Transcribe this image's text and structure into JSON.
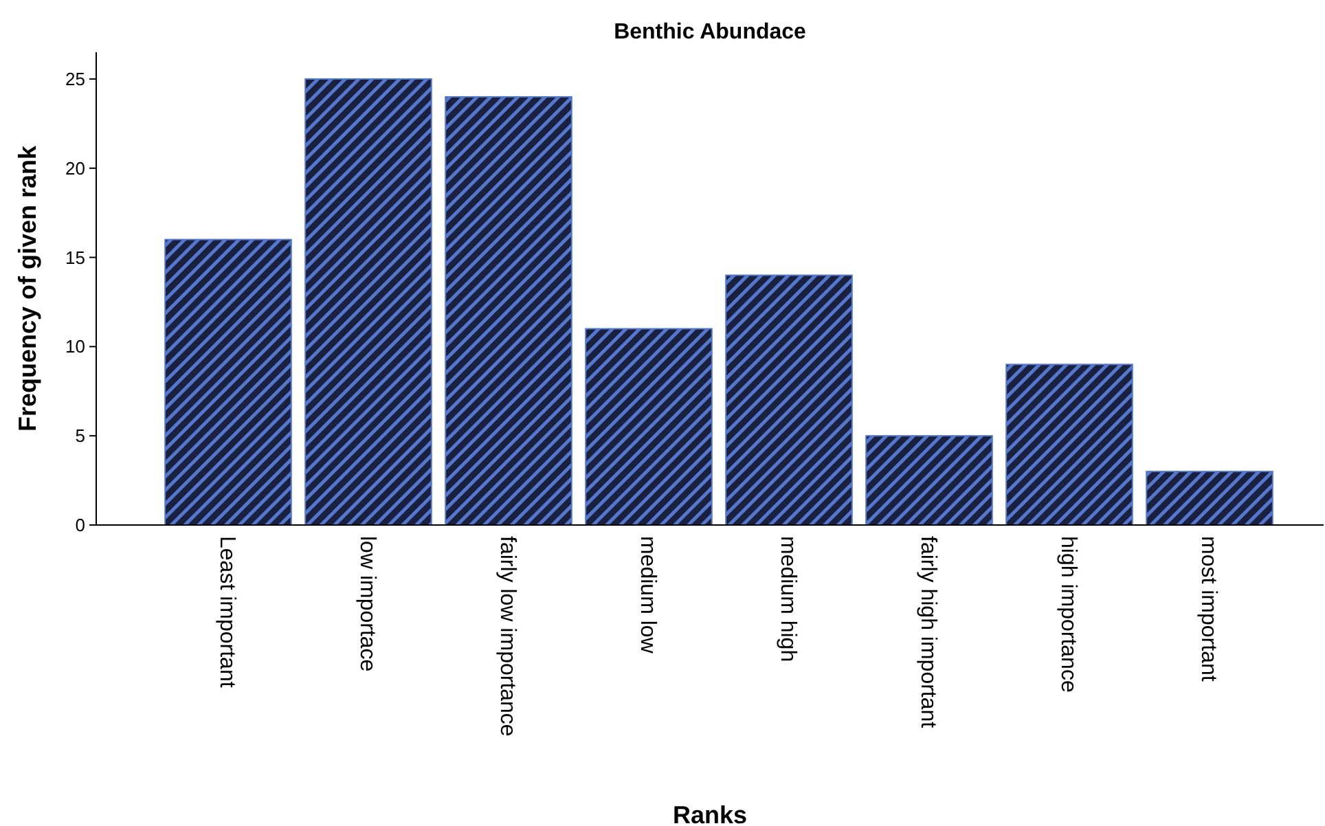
{
  "chart_data": {
    "type": "bar",
    "title": "Benthic Abundace",
    "xlabel": "Ranks",
    "ylabel": "Frequency of given rank",
    "categories": [
      "Least important",
      "low importace",
      "fairly low importance",
      "medium low",
      "medium high",
      "fairly high important",
      "high importance",
      "most important"
    ],
    "values": [
      16,
      25,
      24,
      11,
      14,
      5,
      9,
      3
    ],
    "color": "#5577cc",
    "ylim": [
      0,
      26.5
    ],
    "yticks": [
      0,
      5,
      10,
      15,
      20,
      25
    ],
    "grid": false
  }
}
